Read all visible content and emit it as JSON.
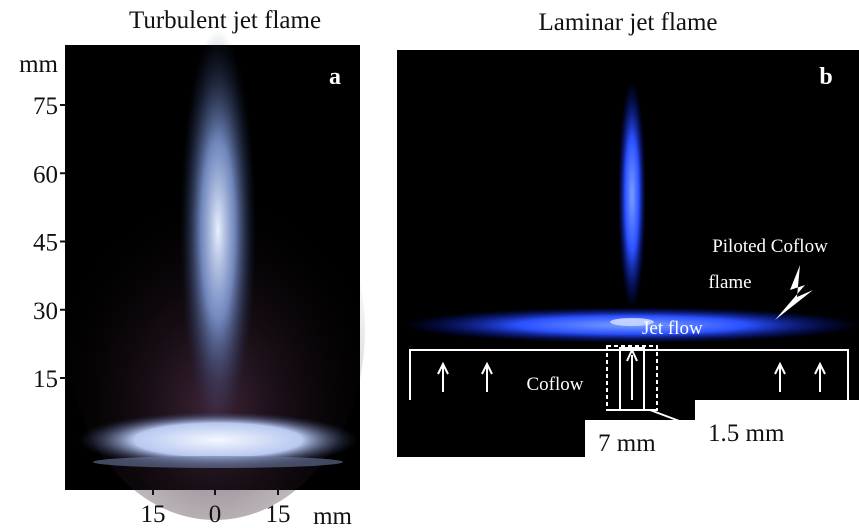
{
  "panels": [
    {
      "title": "Turbulent jet flame",
      "label": "a",
      "y_axis": {
        "unit": "mm",
        "ticks": [
          75,
          60,
          45,
          30,
          15
        ]
      },
      "x_axis": {
        "unit": "mm",
        "ticks": [
          15,
          0,
          15
        ]
      }
    },
    {
      "title": "Laminar jet flame",
      "label": "b",
      "annotations": [
        "Piloted Coflow",
        "flame",
        "Jet flow",
        "Coflow",
        "7 mm",
        "1.5 mm"
      ]
    }
  ]
}
